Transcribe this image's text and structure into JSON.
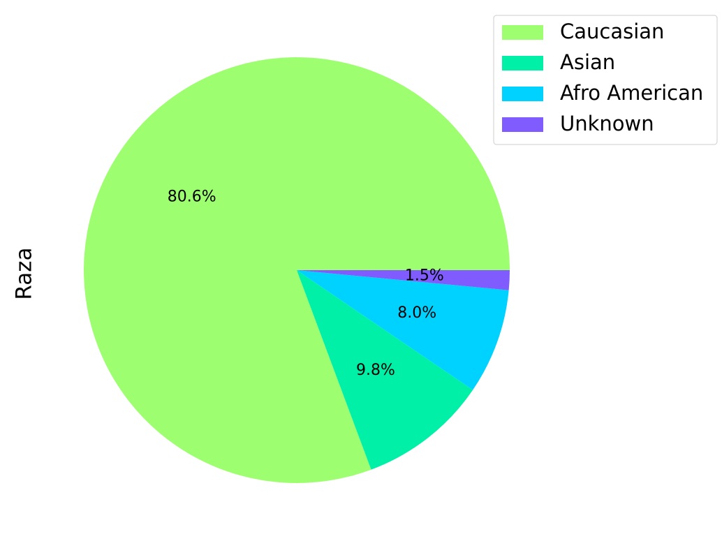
{
  "chart_data": {
    "type": "pie",
    "ylabel": "Raza",
    "categories": [
      "Caucasian",
      "Asian",
      "Afro American",
      "Unknown"
    ],
    "values": [
      80.6,
      9.8,
      8.0,
      1.5
    ],
    "labels": [
      "80.6%",
      "9.8%",
      "8.0%",
      "1.5%"
    ],
    "colors": [
      "#9dff70",
      "#00f0a8",
      "#00d2ff",
      "#805cff"
    ],
    "start_angle_deg": 0,
    "direction": "counterclockwise",
    "legend_position": "top-right"
  }
}
